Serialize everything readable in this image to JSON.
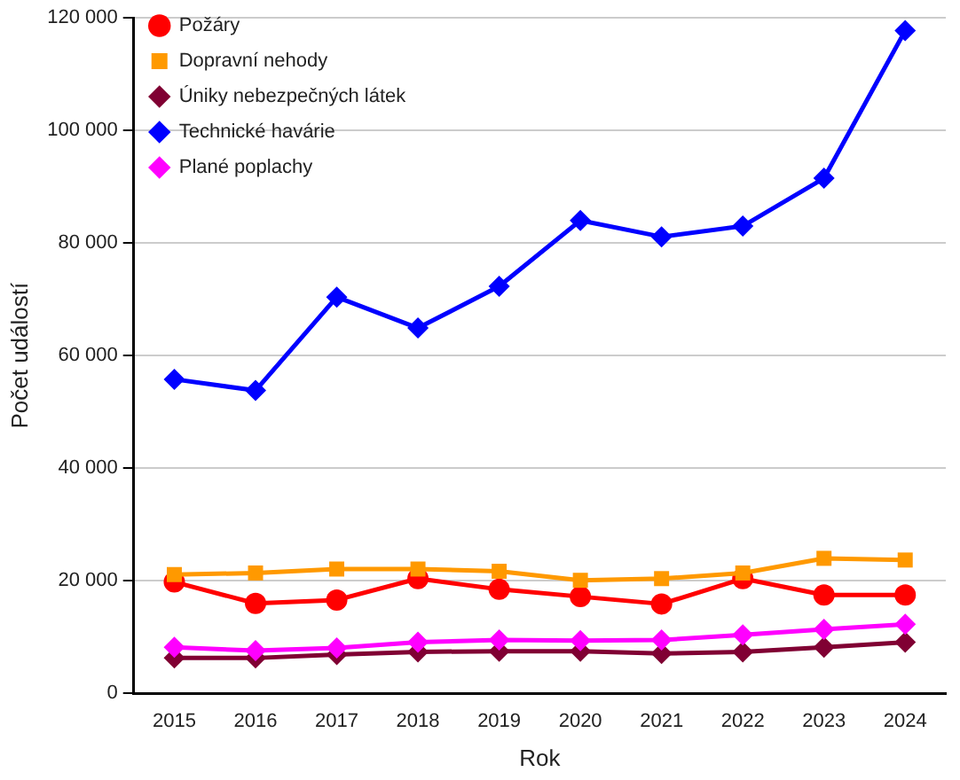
{
  "chart_data": {
    "type": "line",
    "xlabel": "Rok",
    "ylabel": "Počet událostí",
    "categories": [
      "2015",
      "2016",
      "2017",
      "2018",
      "2019",
      "2020",
      "2021",
      "2022",
      "2023",
      "2024"
    ],
    "series": [
      {
        "name": "Požáry",
        "color": "#ff0000",
        "marker": "circle",
        "values": [
          19800,
          16000,
          16600,
          20400,
          18500,
          17200,
          15900,
          20400,
          17500,
          17500
        ]
      },
      {
        "name": "Dopravní nehody",
        "color": "#ff9900",
        "marker": "square",
        "values": [
          21100,
          21400,
          22100,
          22100,
          21700,
          20100,
          20400,
          21400,
          24000,
          23700
        ]
      },
      {
        "name": "Úniky nebezpečných látek",
        "color": "#800033",
        "marker": "diamond",
        "values": [
          6300,
          6300,
          6900,
          7400,
          7500,
          7500,
          7100,
          7400,
          8200,
          9100
        ]
      },
      {
        "name": "Technické havárie",
        "color": "#0000ff",
        "marker": "diamond",
        "values": [
          55800,
          53800,
          70400,
          64900,
          72300,
          84000,
          81100,
          83000,
          91500,
          117700
        ]
      },
      {
        "name": "Plané poplachy",
        "color": "#ff00ff",
        "marker": "diamond",
        "values": [
          8200,
          7600,
          8100,
          9100,
          9500,
          9400,
          9500,
          10400,
          11400,
          12300
        ]
      }
    ],
    "ylim": [
      0,
      120000
    ],
    "yticks": [
      {
        "value": 0,
        "label": "0"
      },
      {
        "value": 20000,
        "label": "20 000"
      },
      {
        "value": 40000,
        "label": "40 000"
      },
      {
        "value": 60000,
        "label": "60 000"
      },
      {
        "value": 80000,
        "label": "80 000"
      },
      {
        "value": 100000,
        "label": "100 000"
      },
      {
        "value": 120000,
        "label": "120 000"
      }
    ],
    "grid": "y",
    "legend": "top left",
    "line_style": "solid"
  }
}
